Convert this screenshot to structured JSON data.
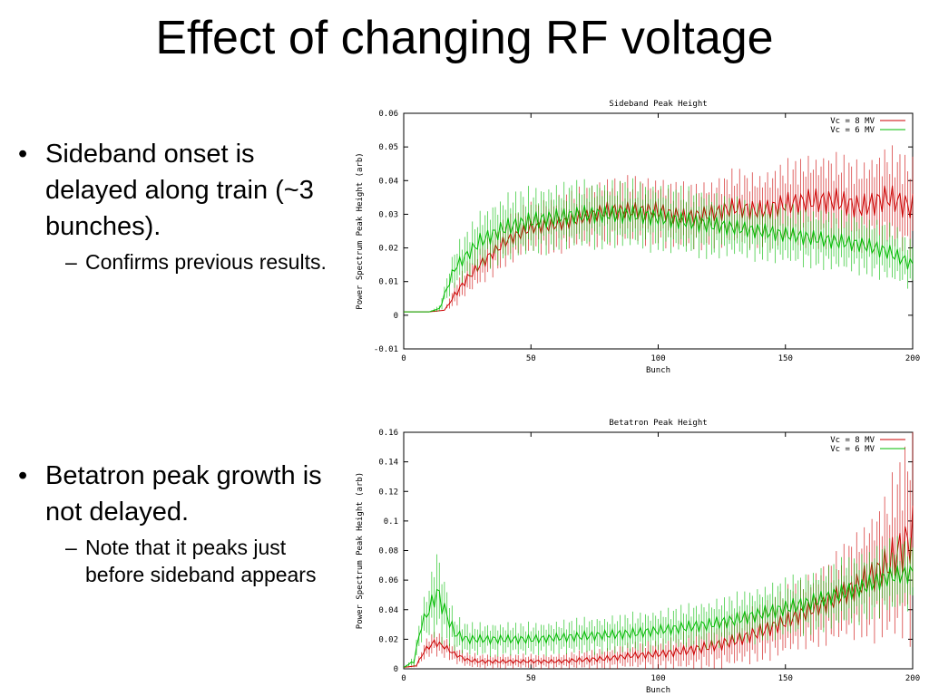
{
  "slide": {
    "title": "Effect of changing RF voltage",
    "bullets": [
      {
        "text": "Sideband onset is delayed along train (~3 bunches).",
        "sub": "Confirms previous results."
      },
      {
        "text": "Betatron peak growth is not delayed.",
        "sub": "Note that it peaks just before sideband appears"
      }
    ]
  },
  "chart_data": [
    {
      "type": "line",
      "title": "Sideband Peak Height",
      "xlabel": "Bunch",
      "ylabel": "Power Spectrum Peak Height (arb)",
      "xlim": [
        0,
        200
      ],
      "ylim": [
        -0.01,
        0.06
      ],
      "xticks": [
        "0",
        "50",
        "100",
        "150",
        "200"
      ],
      "yticks": [
        "-0.01",
        "0",
        "0.01",
        "0.02",
        "0.03",
        "0.04",
        "0.05",
        "0.06"
      ],
      "legend_position": "top-right",
      "error_bars": true,
      "series": [
        {
          "name": "Vc = 8 MV",
          "color": "#cc0000",
          "x": [
            0,
            10,
            16,
            20,
            25,
            30,
            40,
            50,
            60,
            70,
            80,
            90,
            100,
            110,
            120,
            130,
            140,
            150,
            160,
            170,
            180,
            190,
            200
          ],
          "y": [
            0.001,
            0.001,
            0.0015,
            0.006,
            0.011,
            0.015,
            0.022,
            0.026,
            0.027,
            0.029,
            0.031,
            0.031,
            0.031,
            0.029,
            0.03,
            0.032,
            0.031,
            0.033,
            0.034,
            0.034,
            0.032,
            0.035,
            0.032
          ],
          "err": [
            0,
            0,
            0,
            0.003,
            0.004,
            0.005,
            0.006,
            0.006,
            0.007,
            0.007,
            0.008,
            0.008,
            0.008,
            0.008,
            0.008,
            0.009,
            0.009,
            0.01,
            0.011,
            0.011,
            0.011,
            0.012,
            0.012
          ]
        },
        {
          "name": "Vc = 6 MV",
          "color": "#00bb00",
          "x": [
            0,
            10,
            14,
            17,
            20,
            25,
            30,
            40,
            50,
            60,
            70,
            80,
            90,
            100,
            110,
            120,
            130,
            140,
            150,
            160,
            170,
            180,
            190,
            200
          ],
          "y": [
            0.001,
            0.001,
            0.002,
            0.008,
            0.014,
            0.018,
            0.022,
            0.026,
            0.028,
            0.029,
            0.03,
            0.03,
            0.03,
            0.029,
            0.028,
            0.027,
            0.026,
            0.025,
            0.024,
            0.023,
            0.022,
            0.021,
            0.019,
            0.015
          ],
          "err": [
            0,
            0,
            0.001,
            0.003,
            0.005,
            0.006,
            0.007,
            0.008,
            0.008,
            0.008,
            0.008,
            0.008,
            0.008,
            0.008,
            0.008,
            0.008,
            0.007,
            0.007,
            0.007,
            0.007,
            0.007,
            0.007,
            0.007,
            0.006
          ]
        }
      ]
    },
    {
      "type": "line",
      "title": "Betatron Peak Height",
      "xlabel": "Bunch",
      "ylabel": "Power Spectrum Peak Height (arb)",
      "xlim": [
        0,
        200
      ],
      "ylim": [
        0,
        0.16
      ],
      "xticks": [
        "0",
        "50",
        "100",
        "150",
        "200"
      ],
      "yticks": [
        "0",
        "0.02",
        "0.04",
        "0.06",
        "0.08",
        "0.1",
        "0.12",
        "0.14",
        "0.16"
      ],
      "legend_position": "top-right",
      "error_bars": true,
      "series": [
        {
          "name": "Vc = 8 MV",
          "color": "#cc0000",
          "x": [
            0,
            5,
            8,
            12,
            16,
            20,
            25,
            30,
            40,
            50,
            60,
            70,
            80,
            90,
            100,
            110,
            120,
            130,
            140,
            150,
            160,
            170,
            180,
            190,
            195,
            200
          ],
          "y": [
            0.001,
            0.002,
            0.012,
            0.018,
            0.015,
            0.01,
            0.006,
            0.005,
            0.005,
            0.005,
            0.005,
            0.006,
            0.007,
            0.009,
            0.01,
            0.012,
            0.015,
            0.019,
            0.025,
            0.032,
            0.04,
            0.048,
            0.058,
            0.07,
            0.08,
            0.09
          ],
          "err": [
            0,
            0.001,
            0.005,
            0.007,
            0.006,
            0.005,
            0.004,
            0.004,
            0.004,
            0.004,
            0.004,
            0.005,
            0.006,
            0.007,
            0.008,
            0.01,
            0.012,
            0.014,
            0.016,
            0.018,
            0.02,
            0.024,
            0.03,
            0.04,
            0.05,
            0.06
          ]
        },
        {
          "name": "Vc = 6 MV",
          "color": "#00bb00",
          "x": [
            0,
            4,
            7,
            10,
            13,
            16,
            20,
            25,
            30,
            40,
            50,
            60,
            70,
            80,
            90,
            100,
            110,
            120,
            130,
            140,
            150,
            160,
            170,
            180,
            190,
            200
          ],
          "y": [
            0.001,
            0.005,
            0.03,
            0.04,
            0.052,
            0.04,
            0.024,
            0.02,
            0.02,
            0.02,
            0.02,
            0.021,
            0.022,
            0.023,
            0.024,
            0.026,
            0.028,
            0.03,
            0.033,
            0.037,
            0.041,
            0.045,
            0.05,
            0.055,
            0.062,
            0.065
          ],
          "err": [
            0,
            0.003,
            0.01,
            0.015,
            0.025,
            0.018,
            0.01,
            0.009,
            0.009,
            0.009,
            0.009,
            0.009,
            0.01,
            0.01,
            0.011,
            0.011,
            0.012,
            0.013,
            0.014,
            0.015,
            0.016,
            0.017,
            0.018,
            0.019,
            0.02,
            0.02
          ]
        }
      ]
    }
  ]
}
